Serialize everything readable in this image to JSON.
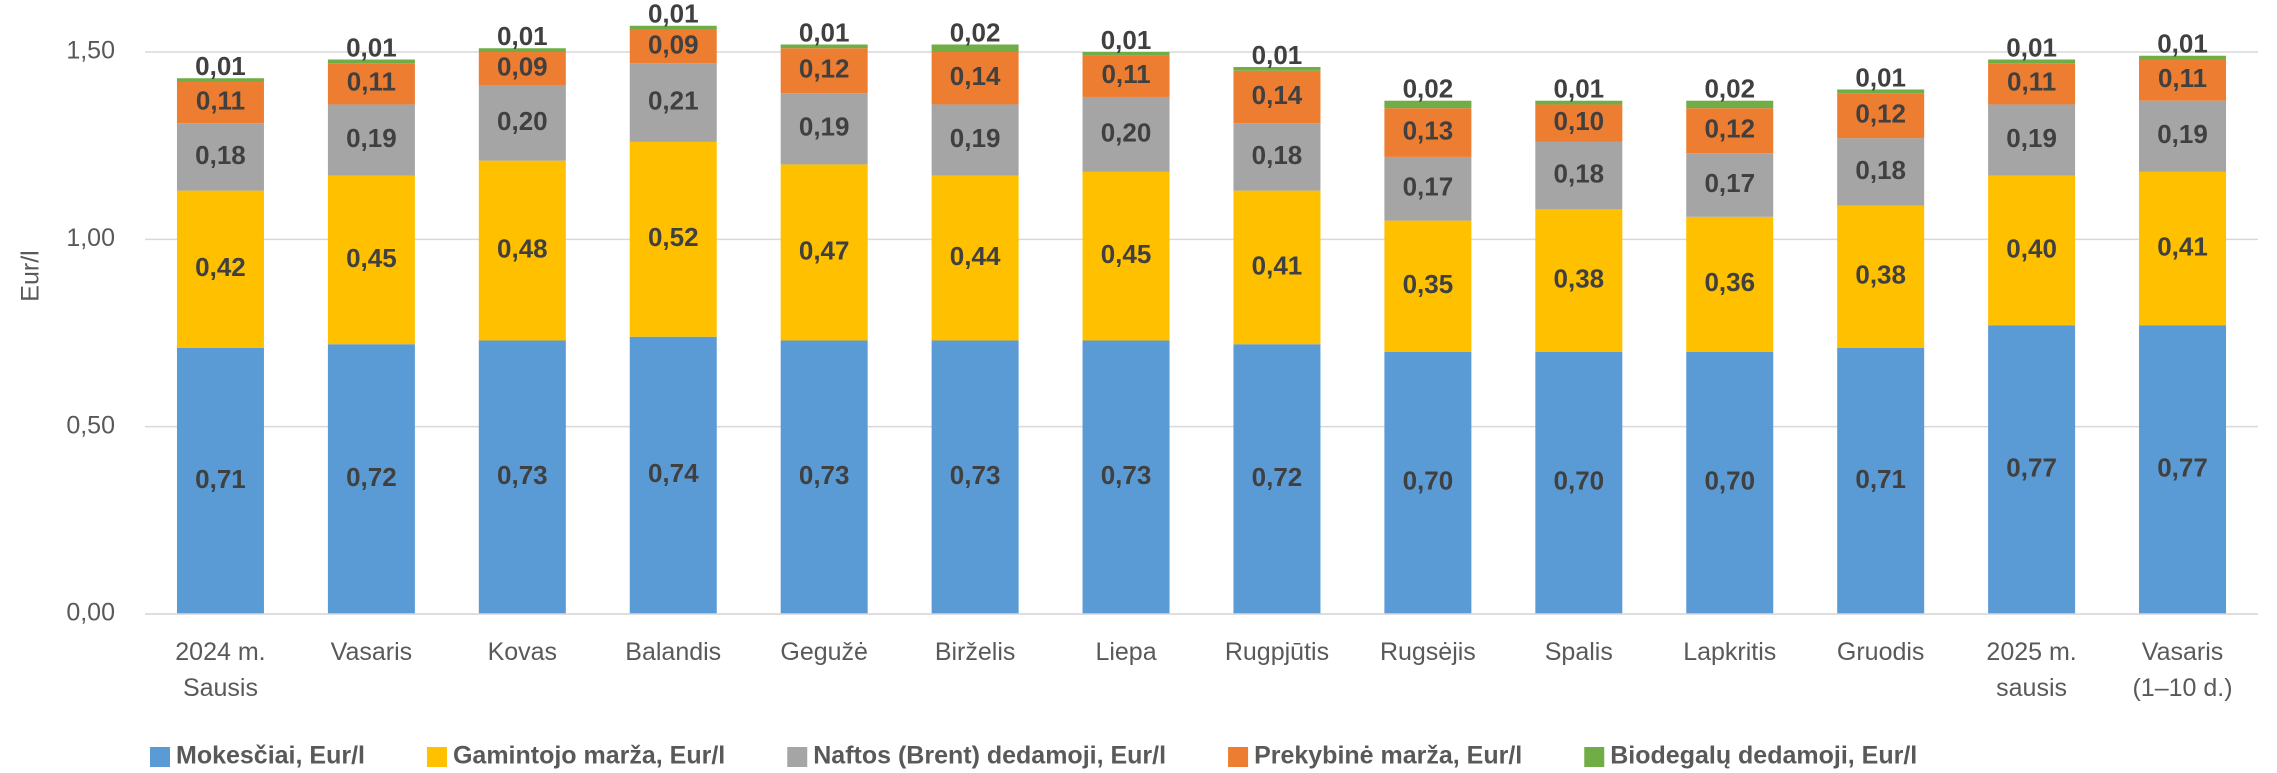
{
  "chart_data": {
    "type": "stacked_bar",
    "y_label": "Eur/l",
    "categories": [
      "2024 m. Sausis",
      "Vasaris",
      "Kovas",
      "Balandis",
      "Gegužė",
      "Birželis",
      "Liepa",
      "Rugpjūtis",
      "Rugsėjis",
      "Spalis",
      "Lapkritis",
      "Gruodis",
      "2025 m. sausis",
      "Vasaris (1–10 d.)"
    ],
    "series": [
      {
        "name": "Mokesčiai, Eur/l",
        "color": "#5b9bd5",
        "values": [
          0.71,
          0.72,
          0.73,
          0.74,
          0.73,
          0.73,
          0.73,
          0.72,
          0.7,
          0.7,
          0.7,
          0.71,
          0.77,
          0.77
        ],
        "value_labels": [
          "0,71",
          "0,72",
          "0,73",
          "0,74",
          "0,73",
          "0,73",
          "0,73",
          "0,72",
          "0,70",
          "0,70",
          "0,70",
          "0,71",
          "0,77",
          "0,77"
        ]
      },
      {
        "name": "Gamintojo marža, Eur/l",
        "color": "#ffc000",
        "values": [
          0.42,
          0.45,
          0.48,
          0.52,
          0.47,
          0.44,
          0.45,
          0.41,
          0.35,
          0.38,
          0.36,
          0.38,
          0.4,
          0.41
        ],
        "value_labels": [
          "0,42",
          "0,45",
          "0,48",
          "0,52",
          "0,47",
          "0,44",
          "0,45",
          "0,41",
          "0,35",
          "0,38",
          "0,36",
          "0,38",
          "0,40",
          "0,41"
        ]
      },
      {
        "name": "Naftos (Brent) dedamoji, Eur/l",
        "color": "#a5a5a5",
        "values": [
          0.18,
          0.19,
          0.2,
          0.21,
          0.19,
          0.19,
          0.2,
          0.18,
          0.17,
          0.18,
          0.17,
          0.18,
          0.19,
          0.19
        ],
        "value_labels": [
          "0,18",
          "0,19",
          "0,20",
          "0,21",
          "0,19",
          "0,19",
          "0,20",
          "0,18",
          "0,17",
          "0,18",
          "0,17",
          "0,18",
          "0,19",
          "0,19"
        ]
      },
      {
        "name": "Prekybinė marža, Eur/l",
        "color": "#ed7d31",
        "values": [
          0.11,
          0.11,
          0.09,
          0.09,
          0.12,
          0.14,
          0.11,
          0.14,
          0.13,
          0.1,
          0.12,
          0.12,
          0.11,
          0.11
        ],
        "value_labels": [
          "0,11",
          "0,11",
          "0,09",
          "0,09",
          "0,12",
          "0,14",
          "0,11",
          "0,14",
          "0,13",
          "0,10",
          "0,12",
          "0,12",
          "0,11",
          "0,11"
        ]
      },
      {
        "name": "Biodegalų dedamoji, Eur/l",
        "color": "#70ad47",
        "values": [
          0.01,
          0.01,
          0.01,
          0.01,
          0.01,
          0.02,
          0.01,
          0.01,
          0.02,
          0.01,
          0.02,
          0.01,
          0.01,
          0.01
        ],
        "value_labels": [
          "0,01",
          "0,01",
          "0,01",
          "0,01",
          "0,01",
          "0,02",
          "0,01",
          "0,01",
          "0,02",
          "0,01",
          "0,02",
          "0,01",
          "0,01",
          "0,01"
        ]
      }
    ],
    "ylim": [
      0,
      1.6
    ],
    "yticks": [
      {
        "value": 0,
        "label": "0,00"
      },
      {
        "value": 0.5,
        "label": "0,50"
      },
      {
        "value": 1,
        "label": "1,00"
      },
      {
        "value": 1.5,
        "label": "1,50"
      }
    ],
    "grid": true,
    "legend": "bottom"
  }
}
